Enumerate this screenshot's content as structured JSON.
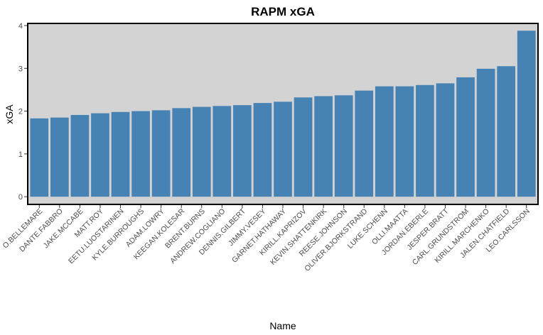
{
  "chart_data": {
    "type": "bar",
    "title": "RAPM xGA",
    "xlabel": "Name",
    "ylabel": "xGA",
    "ylim": [
      -0.18,
      4.05
    ],
    "yticks": [
      0,
      1,
      2,
      3,
      4
    ],
    "ytick_labels": [
      "0",
      "1",
      "2",
      "3",
      "4"
    ],
    "grid": false,
    "legend": "none",
    "bar_color": "#4682B4",
    "panel_background": "#D3D3D3",
    "categories": [
      "O.BELLEMARE",
      "DANTE.FABBRO",
      "JAKE.MCCABE",
      "MATT.ROY",
      "EETU.LUOSTARINEN",
      "KYLE.BURROUGHS",
      "ADAM.LOWRY",
      "KEEGAN.KOLESAR",
      "BRENT.BURNS",
      "ANDREW.COGLIANO",
      "DENNIS.GILBERT",
      "JIMMY.VESEY",
      "GARNET.HATHAWAY",
      "KIRILL.KAPRIZOV",
      "KEVIN.SHATTENKIRK",
      "REESE.JOHNSON",
      "OLIVER.BJORKSTRAND",
      "LUKE.SCHENN",
      "OLLI.MAATTA",
      "JORDAN.EBERLE",
      "JESPER.BRATT",
      "CARL.GRUNDSTROM",
      "KIRILL.MARCHENKO",
      "JALEN.CHATFIELD",
      "LEO.CARLSSON"
    ],
    "values": [
      1.83,
      1.85,
      1.91,
      1.95,
      1.98,
      2.0,
      2.02,
      2.07,
      2.1,
      2.12,
      2.14,
      2.19,
      2.22,
      2.32,
      2.35,
      2.37,
      2.48,
      2.58,
      2.58,
      2.61,
      2.65,
      2.79,
      2.99,
      3.05,
      3.88
    ]
  }
}
